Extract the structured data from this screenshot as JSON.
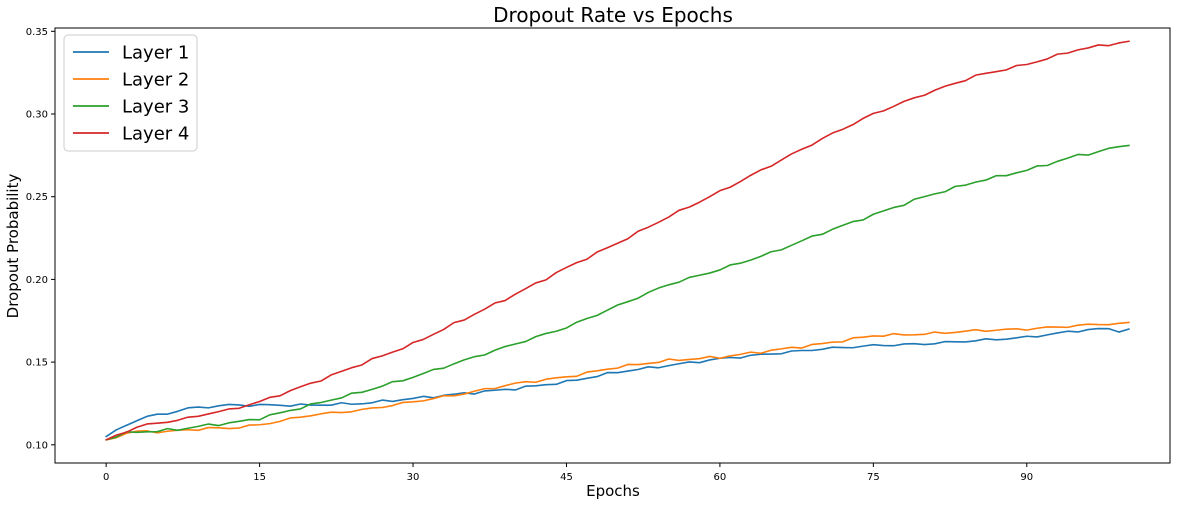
{
  "chart_data": {
    "type": "line",
    "title": "Dropout Rate vs Epochs",
    "xlabel": "Epochs",
    "ylabel": "Dropout Probability",
    "xlim": [
      -5,
      104
    ],
    "ylim": [
      0.089,
      0.352
    ],
    "x_ticks": [
      0,
      15,
      30,
      45,
      60,
      75,
      90
    ],
    "y_ticks": [
      0.1,
      0.15,
      0.2,
      0.25,
      0.3,
      0.35
    ],
    "x_tick_labels": [
      "0",
      "15",
      "30",
      "45",
      "60",
      "75",
      "90"
    ],
    "y_tick_labels": [
      "0.10",
      "0.15",
      "0.20",
      "0.25",
      "0.30",
      "0.35"
    ],
    "grid": false,
    "legend_position": "top-left",
    "x_anchors": [
      0,
      2,
      3,
      4,
      5,
      6,
      8,
      10,
      12,
      15,
      20,
      25,
      30,
      35,
      40,
      45,
      50,
      55,
      60,
      65,
      70,
      75,
      80,
      85,
      90,
      95,
      97,
      98,
      99,
      100
    ],
    "series": [
      {
        "name": "Layer 1",
        "color": "#1f77b4",
        "values": [
          0.105,
          0.112,
          0.115,
          0.117,
          0.118,
          0.119,
          0.122,
          0.123,
          0.124,
          0.124,
          0.124,
          0.125,
          0.128,
          0.131,
          0.134,
          0.138,
          0.144,
          0.148,
          0.152,
          0.155,
          0.158,
          0.16,
          0.161,
          0.163,
          0.165,
          0.169,
          0.17,
          0.17,
          0.169,
          0.17
        ]
      },
      {
        "name": "Layer 2",
        "color": "#ff7f0e",
        "values": [
          0.103,
          0.107,
          0.108,
          0.108,
          0.108,
          0.108,
          0.109,
          0.11,
          0.11,
          0.112,
          0.118,
          0.121,
          0.126,
          0.131,
          0.137,
          0.141,
          0.147,
          0.151,
          0.153,
          0.157,
          0.161,
          0.166,
          0.167,
          0.169,
          0.17,
          0.172,
          0.173,
          0.173,
          0.173,
          0.174
        ]
      },
      {
        "name": "Layer 3",
        "color": "#2ca02c",
        "values": [
          0.103,
          0.107,
          0.108,
          0.108,
          0.108,
          0.109,
          0.11,
          0.112,
          0.113,
          0.116,
          0.124,
          0.132,
          0.141,
          0.151,
          0.161,
          0.171,
          0.184,
          0.197,
          0.206,
          0.216,
          0.228,
          0.239,
          0.25,
          0.259,
          0.266,
          0.275,
          0.277,
          0.279,
          0.28,
          0.281
        ]
      },
      {
        "name": "Layer 4",
        "color": "#d62728",
        "values": [
          0.103,
          0.108,
          0.111,
          0.112,
          0.113,
          0.114,
          0.116,
          0.119,
          0.121,
          0.126,
          0.137,
          0.149,
          0.161,
          0.176,
          0.191,
          0.207,
          0.222,
          0.238,
          0.253,
          0.269,
          0.285,
          0.3,
          0.312,
          0.323,
          0.33,
          0.339,
          0.341,
          0.342,
          0.343,
          0.344
        ]
      }
    ]
  }
}
